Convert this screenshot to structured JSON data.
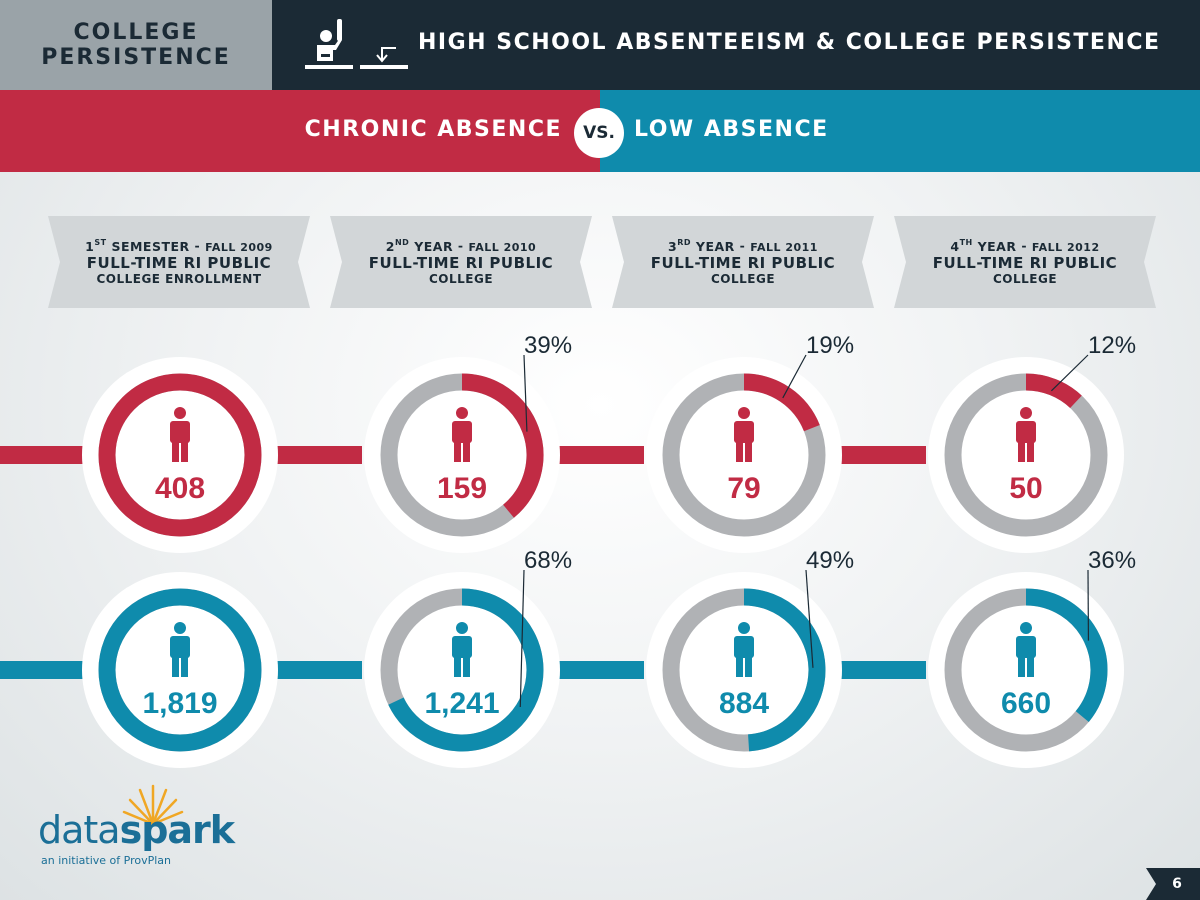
{
  "header": {
    "section_line1": "COLLEGE",
    "section_line2": "PERSISTENCE",
    "title": "HIGH SCHOOL ABSENTEEISM & COLLEGE PERSISTENCE",
    "icon": "raised-hand-student-icon"
  },
  "comparison": {
    "left_label": "CHRONIC ABSENCE",
    "vs_label": "VS.",
    "right_label": "LOW ABSENCE",
    "left_color": "#c12b44",
    "right_color": "#0f8bac"
  },
  "stages": [
    {
      "ordinal": "1",
      "suffix": "ST",
      "name": "SEMESTER",
      "term": "FALL 2009",
      "line2": "FULL-TIME RI PUBLIC",
      "line3": "COLLEGE ENROLLMENT"
    },
    {
      "ordinal": "2",
      "suffix": "ND",
      "name": "YEAR",
      "term": "FALL 2010",
      "line2": "FULL-TIME RI PUBLIC",
      "line3": "COLLEGE"
    },
    {
      "ordinal": "3",
      "suffix": "RD",
      "name": "YEAR",
      "term": "FALL 2011",
      "line2": "FULL-TIME RI PUBLIC",
      "line3": "COLLEGE"
    },
    {
      "ordinal": "4",
      "suffix": "TH",
      "name": "YEAR",
      "term": "FALL 2012",
      "line2": "FULL-TIME RI PUBLIC",
      "line3": "COLLEGE"
    }
  ],
  "chart_data": {
    "type": "donut",
    "categories": [
      "1st Semester - Fall 2009",
      "2nd Year - Fall 2010",
      "3rd Year - Fall 2011",
      "4th Year - Fall 2012"
    ],
    "series": [
      {
        "name": "CHRONIC ABSENCE",
        "color": "#c12b44",
        "counts": [
          408,
          159,
          79,
          50
        ],
        "count_labels": [
          "408",
          "159",
          "79",
          "50"
        ],
        "percents": [
          100,
          39,
          19,
          12
        ],
        "percent_labels": [
          "",
          "39%",
          "19%",
          "12%"
        ]
      },
      {
        "name": "LOW ABSENCE",
        "color": "#0f8bac",
        "counts": [
          1819,
          1241,
          884,
          660
        ],
        "count_labels": [
          "1,819",
          "1,241",
          "884",
          "660"
        ],
        "percents": [
          100,
          68,
          49,
          36
        ],
        "percent_labels": [
          "",
          "68%",
          "49%",
          "36%"
        ]
      }
    ],
    "remainder_color": "#b0b2b5",
    "icon": "person-icon"
  },
  "footer": {
    "logo_word_light": "data",
    "logo_word_bold": "spark",
    "logo_tagline": "an initiative of ProvPlan",
    "page_number": "6"
  }
}
